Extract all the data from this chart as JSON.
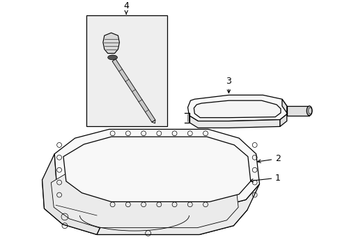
{
  "background_color": "#ffffff",
  "line_color": "#000000",
  "fill_light": "#f8f8f8",
  "fill_gray": "#e8e8e8",
  "fill_box": "#eeeeee",
  "lw_main": 0.9,
  "lw_thin": 0.5,
  "label_fs": 9
}
